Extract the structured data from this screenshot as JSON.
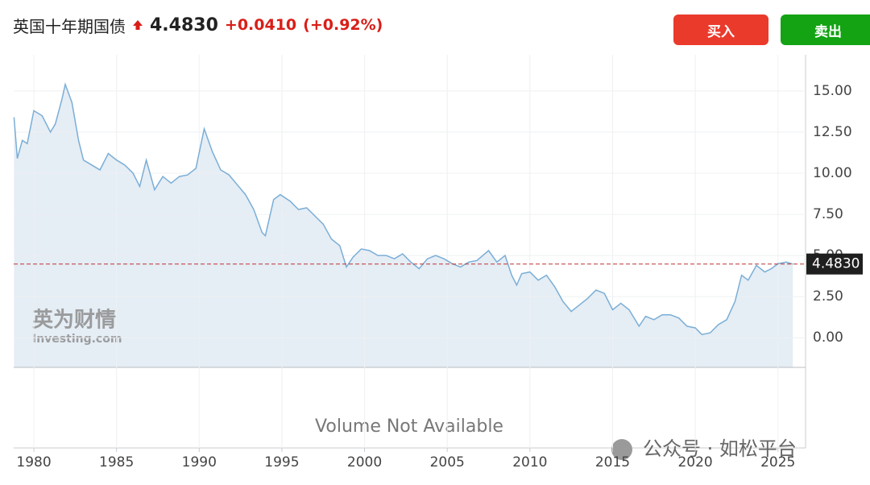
{
  "header": {
    "title": "英国十年期国债",
    "change": "+0.0410",
    "change_percent": "(+0.92%)",
    "buy": "买入",
    "sell": "卖出"
  },
  "chart_data": {
    "type": "area",
    "last": {
      "value": 4.483,
      "label": "4.4830"
    },
    "note": "Volume Not Available",
    "watermark": {
      "cn": "英为财情",
      "en": "Investing.com"
    },
    "source": "公众号 · 如松平台",
    "color": "#7aaed6",
    "fill": "#e5edf5",
    "grid": true,
    "xlim": [
      1978.78,
      2026.67
    ],
    "xticks": [
      1980,
      1985,
      1990,
      1995,
      2000,
      2005,
      2010,
      2015,
      2020,
      2025
    ],
    "ylim": [
      -1.8,
      17.2
    ],
    "yticks": [
      {
        "value": 0,
        "label": "0.00"
      },
      {
        "value": 2.5,
        "label": "2.50"
      },
      {
        "value": 5,
        "label": "5.00"
      },
      {
        "value": 7.5,
        "label": "7.50"
      },
      {
        "value": 10,
        "label": "10.00"
      },
      {
        "value": 12.5,
        "label": "12.50"
      },
      {
        "value": 15,
        "label": "15.00"
      }
    ],
    "x": [
      1978.8,
      1979.0,
      1979.3,
      1979.6,
      1980.0,
      1980.5,
      1981.0,
      1981.3,
      1981.7,
      1981.9,
      1982.3,
      1982.7,
      1983.0,
      1983.5,
      1984.0,
      1984.5,
      1985.0,
      1985.5,
      1986.0,
      1986.4,
      1986.8,
      1987.3,
      1987.8,
      1988.3,
      1988.8,
      1989.3,
      1989.8,
      1990.3,
      1990.8,
      1991.3,
      1991.8,
      1992.3,
      1992.8,
      1993.3,
      1993.8,
      1994.0,
      1994.5,
      1994.9,
      1995.5,
      1996.0,
      1996.5,
      1997.0,
      1997.5,
      1998.0,
      1998.5,
      1998.9,
      1999.3,
      1999.8,
      2000.3,
      2000.8,
      2001.3,
      2001.8,
      2002.3,
      2002.8,
      2003.3,
      2003.8,
      2004.3,
      2004.8,
      2005.3,
      2005.8,
      2006.3,
      2006.8,
      2007.5,
      2008.0,
      2008.5,
      2008.9,
      2009.2,
      2009.5,
      2010.0,
      2010.5,
      2011.0,
      2011.5,
      2012.0,
      2012.5,
      2013.0,
      2013.5,
      2014.0,
      2014.5,
      2015.0,
      2015.5,
      2016.0,
      2016.6,
      2017.0,
      2017.5,
      2018.0,
      2018.5,
      2019.0,
      2019.5,
      2020.0,
      2020.4,
      2020.9,
      2021.4,
      2021.9,
      2022.4,
      2022.8,
      2023.2,
      2023.7,
      2024.2,
      2024.6,
      2025.0,
      2025.5,
      2025.9
    ],
    "values": [
      13.4,
      10.9,
      12.0,
      11.8,
      13.8,
      13.5,
      12.5,
      13.0,
      14.5,
      15.4,
      14.3,
      12.0,
      10.8,
      10.5,
      10.2,
      11.2,
      10.8,
      10.5,
      10.0,
      9.2,
      10.8,
      9.0,
      9.8,
      9.4,
      9.8,
      9.9,
      10.3,
      12.7,
      11.3,
      10.2,
      9.9,
      9.3,
      8.7,
      7.8,
      6.4,
      6.2,
      8.4,
      8.7,
      8.3,
      7.8,
      7.9,
      7.4,
      6.9,
      6.0,
      5.6,
      4.3,
      4.9,
      5.4,
      5.3,
      5.0,
      5.0,
      4.8,
      5.1,
      4.6,
      4.2,
      4.8,
      5.0,
      4.8,
      4.5,
      4.3,
      4.6,
      4.7,
      5.3,
      4.6,
      5.0,
      3.8,
      3.2,
      3.9,
      4.0,
      3.5,
      3.8,
      3.1,
      2.2,
      1.6,
      2.0,
      2.4,
      2.9,
      2.7,
      1.7,
      2.1,
      1.7,
      0.7,
      1.3,
      1.1,
      1.4,
      1.4,
      1.2,
      0.7,
      0.6,
      0.2,
      0.3,
      0.8,
      1.1,
      2.2,
      3.8,
      3.5,
      4.4,
      4.0,
      4.2,
      4.5,
      4.6,
      4.48
    ]
  }
}
